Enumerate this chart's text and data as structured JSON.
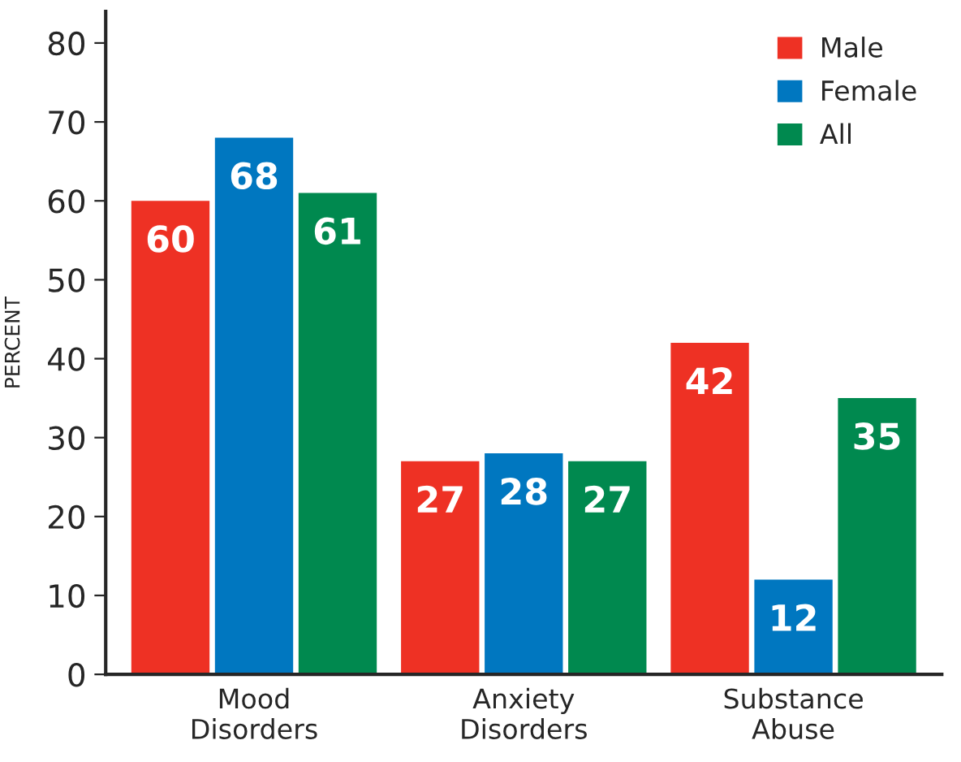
{
  "chart_data": {
    "type": "bar",
    "ylabel": "PERCENT",
    "categories": [
      "Mood\nDisorders",
      "Anxiety\nDisorders",
      "Substance\nAbuse"
    ],
    "series": [
      {
        "name": "Male",
        "color": "#ee3124",
        "values": [
          60,
          27,
          42
        ]
      },
      {
        "name": "Female",
        "color": "#0077c0",
        "values": [
          68,
          28,
          12
        ]
      },
      {
        "name": "All",
        "color": "#00894f",
        "values": [
          61,
          27,
          35
        ]
      }
    ],
    "ylim": [
      0,
      84
    ],
    "yticks": [
      0,
      10,
      20,
      30,
      40,
      50,
      60,
      70,
      80
    ],
    "grid": false,
    "legend": "top right",
    "data_labels": true
  }
}
